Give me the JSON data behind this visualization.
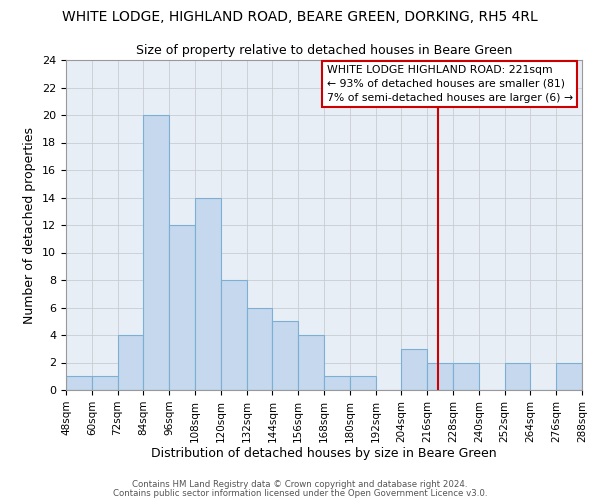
{
  "title": "WHITE LODGE, HIGHLAND ROAD, BEARE GREEN, DORKING, RH5 4RL",
  "subtitle": "Size of property relative to detached houses in Beare Green",
  "xlabel": "Distribution of detached houses by size in Beare Green",
  "ylabel": "Number of detached properties",
  "bin_edges": [
    48,
    60,
    72,
    84,
    96,
    108,
    120,
    132,
    144,
    156,
    168,
    180,
    192,
    204,
    216,
    228,
    240,
    252,
    264,
    276,
    288
  ],
  "counts": [
    1,
    1,
    4,
    20,
    12,
    14,
    8,
    6,
    5,
    4,
    1,
    1,
    0,
    3,
    2,
    2,
    0,
    2,
    0,
    2
  ],
  "bar_color": "#c5d8ed",
  "bar_edgecolor": "#7bafd4",
  "grid_color": "#c8cdd4",
  "bg_color": "#e8eef6",
  "vline_x": 221,
  "vline_color": "#cc0000",
  "annotation_box_text": "WHITE LODGE HIGHLAND ROAD: 221sqm\n← 93% of detached houses are smaller (81)\n7% of semi-detached houses are larger (6) →",
  "ylim": [
    0,
    24
  ],
  "yticks": [
    0,
    2,
    4,
    6,
    8,
    10,
    12,
    14,
    16,
    18,
    20,
    22,
    24
  ],
  "tick_labels": [
    "48sqm",
    "60sqm",
    "72sqm",
    "84sqm",
    "96sqm",
    "108sqm",
    "120sqm",
    "132sqm",
    "144sqm",
    "156sqm",
    "168sqm",
    "180sqm",
    "192sqm",
    "204sqm",
    "216sqm",
    "228sqm",
    "240sqm",
    "252sqm",
    "264sqm",
    "276sqm",
    "288sqm"
  ],
  "footer_line1": "Contains HM Land Registry data © Crown copyright and database right 2024.",
  "footer_line2": "Contains public sector information licensed under the Open Government Licence v3.0."
}
